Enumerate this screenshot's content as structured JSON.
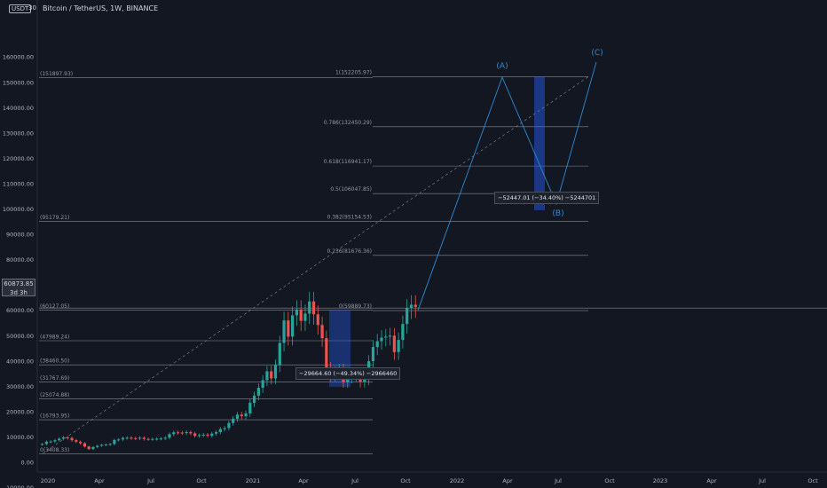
{
  "header": {
    "quote_badge": "USDT",
    "quote_suffix": "30",
    "symbol_title": "Bitcoin / TetherUS, 1W, BINANCE"
  },
  "last_price": {
    "value": "60873.85",
    "countdown": "3d 3h",
    "level": 60873.85
  },
  "colors": {
    "background": "#131722",
    "up": "#26a69a",
    "down": "#ef5350",
    "wave": "#2d8bd6",
    "grid": "#a3a6af",
    "box": "#2962ff"
  },
  "y_axis_ticks": [
    "160000.00",
    "150000.00",
    "140000.00",
    "130000.00",
    "120000.00",
    "110000.00",
    "100000.00",
    "90000.00",
    "80000.00",
    "70000.00",
    "60000.00",
    "50000.00",
    "40000.00",
    "30000.00",
    "20000.00",
    "10000.00",
    "0.00",
    "-10000.00"
  ],
  "x_axis_ticks": [
    "2020",
    "Apr",
    "Jul",
    "Oct",
    "2021",
    "Apr",
    "Jul",
    "Oct",
    "2022",
    "Apr",
    "Jul",
    "Oct",
    "2023",
    "Apr",
    "Jul",
    "Oct"
  ],
  "fib_upper": [
    {
      "ratio": 1,
      "label": "1(152205.97)",
      "price": 152205.97
    },
    {
      "ratio": 0.786,
      "label": "0.786(132450.29)",
      "price": 132450.29
    },
    {
      "ratio": 0.618,
      "label": "0.618(116941.17)",
      "price": 116941.17
    },
    {
      "ratio": 0.5,
      "label": "0.5(106047.85)",
      "price": 106047.85
    },
    {
      "ratio": 0.382,
      "label": "0.382(95154.53)",
      "price": 95154.53
    },
    {
      "ratio": 0.236,
      "label": "0.236(81676.36)",
      "price": 81676.36
    },
    {
      "ratio": 0,
      "label": "0(59889.73)",
      "price": 59889.73
    }
  ],
  "fib_lower": [
    {
      "label": "(151897.93)",
      "price": 151897.93
    },
    {
      "label": "(95179.21)",
      "price": 95179.21
    },
    {
      "label": "(60127.05)",
      "price": 60127.05
    },
    {
      "label": "(47989.24)",
      "price": 47989.24
    },
    {
      "label": "(38460.50)",
      "price": 38460.5
    },
    {
      "label": "(31767.69)",
      "price": 31767.69
    },
    {
      "label": "(25074.88)",
      "price": 25074.88
    },
    {
      "label": "(16793.95)",
      "price": 16793.95
    },
    {
      "label": "0(3408.33)",
      "price": 3408.33
    }
  ],
  "waves": [
    {
      "label": "(A)",
      "price": 152000
    },
    {
      "label": "(B)",
      "price": 102000
    },
    {
      "label": "(C)",
      "price": 158000
    }
  ],
  "measurements": [
    {
      "label": "−52447.01 (−34.40%) −5244701"
    },
    {
      "label": "−29664.60 (−49.34%) −2966460"
    }
  ]
}
